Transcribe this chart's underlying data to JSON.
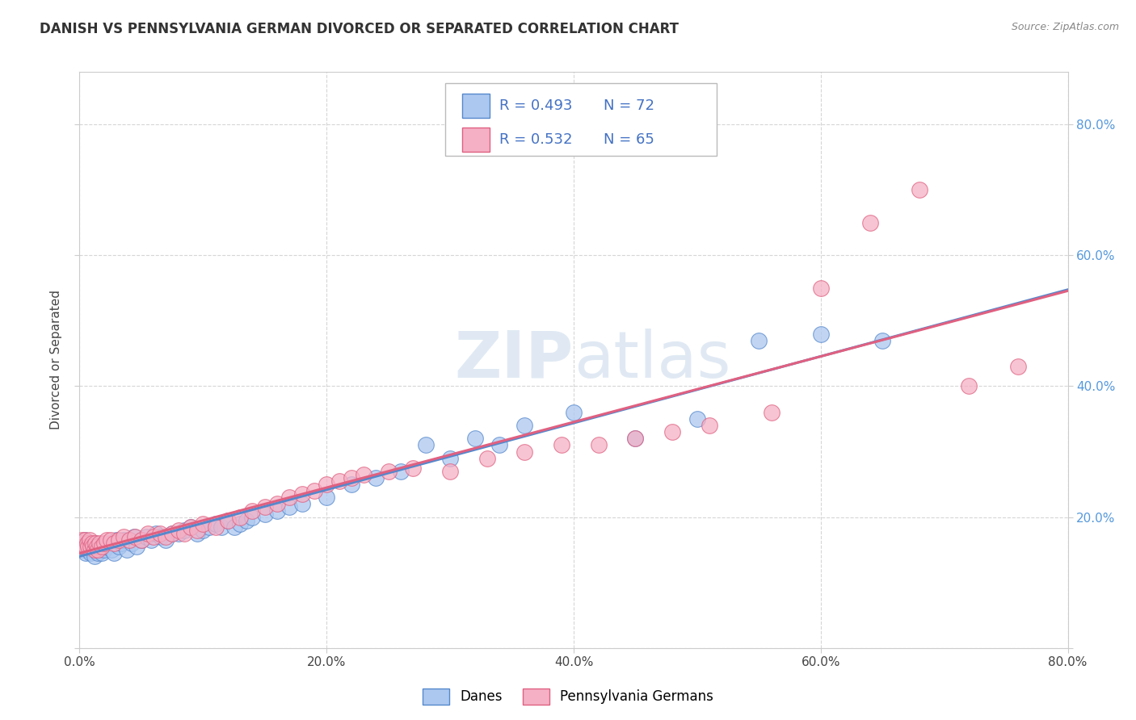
{
  "title": "DANISH VS PENNSYLVANIA GERMAN DIVORCED OR SEPARATED CORRELATION CHART",
  "source": "Source: ZipAtlas.com",
  "ylabel": "Divorced or Separated",
  "xmin": 0.0,
  "xmax": 0.8,
  "ymin": 0.0,
  "ymax": 0.88,
  "yticks": [
    0.0,
    0.2,
    0.4,
    0.6,
    0.8
  ],
  "ytick_labels_right": [
    "",
    "20.0%",
    "40.0%",
    "60.0%",
    "80.0%"
  ],
  "xticks": [
    0.0,
    0.2,
    0.4,
    0.6,
    0.8
  ],
  "xtick_labels": [
    "0.0%",
    "20.0%",
    "40.0%",
    "60.0%",
    "80.0%"
  ],
  "color_danish": "#adc8f0",
  "color_pagerman": "#f5b0c5",
  "color_line_danish": "#5588cc",
  "color_line_pagerman": "#e06080",
  "watermark_text": "ZIPAtlas",
  "legend_label1": "Danes",
  "legend_label2": "Pennsylvania Germans",
  "danes_x": [
    0.001,
    0.002,
    0.003,
    0.004,
    0.005,
    0.006,
    0.007,
    0.008,
    0.009,
    0.01,
    0.011,
    0.012,
    0.013,
    0.014,
    0.015,
    0.016,
    0.017,
    0.018,
    0.019,
    0.02,
    0.022,
    0.024,
    0.026,
    0.028,
    0.03,
    0.032,
    0.034,
    0.036,
    0.038,
    0.04,
    0.042,
    0.044,
    0.046,
    0.05,
    0.054,
    0.058,
    0.062,
    0.066,
    0.07,
    0.075,
    0.08,
    0.085,
    0.09,
    0.095,
    0.1,
    0.105,
    0.11,
    0.115,
    0.12,
    0.125,
    0.13,
    0.135,
    0.14,
    0.15,
    0.16,
    0.17,
    0.18,
    0.2,
    0.22,
    0.24,
    0.26,
    0.28,
    0.3,
    0.32,
    0.34,
    0.36,
    0.4,
    0.45,
    0.5,
    0.55,
    0.6,
    0.65
  ],
  "danes_y": [
    0.155,
    0.16,
    0.15,
    0.165,
    0.145,
    0.155,
    0.15,
    0.16,
    0.145,
    0.155,
    0.15,
    0.14,
    0.16,
    0.155,
    0.145,
    0.155,
    0.15,
    0.145,
    0.155,
    0.15,
    0.155,
    0.16,
    0.15,
    0.145,
    0.165,
    0.155,
    0.16,
    0.165,
    0.15,
    0.165,
    0.16,
    0.17,
    0.155,
    0.165,
    0.17,
    0.165,
    0.175,
    0.17,
    0.165,
    0.175,
    0.175,
    0.18,
    0.185,
    0.175,
    0.18,
    0.185,
    0.19,
    0.185,
    0.195,
    0.185,
    0.19,
    0.195,
    0.2,
    0.205,
    0.21,
    0.215,
    0.22,
    0.23,
    0.25,
    0.26,
    0.27,
    0.31,
    0.29,
    0.32,
    0.31,
    0.34,
    0.36,
    0.32,
    0.35,
    0.47,
    0.48,
    0.47
  ],
  "pagerman_x": [
    0.001,
    0.002,
    0.003,
    0.004,
    0.005,
    0.006,
    0.007,
    0.008,
    0.009,
    0.01,
    0.011,
    0.012,
    0.013,
    0.014,
    0.015,
    0.016,
    0.018,
    0.02,
    0.022,
    0.025,
    0.028,
    0.032,
    0.036,
    0.04,
    0.045,
    0.05,
    0.055,
    0.06,
    0.065,
    0.07,
    0.075,
    0.08,
    0.085,
    0.09,
    0.095,
    0.1,
    0.11,
    0.12,
    0.13,
    0.14,
    0.15,
    0.16,
    0.17,
    0.18,
    0.19,
    0.2,
    0.21,
    0.22,
    0.23,
    0.25,
    0.27,
    0.3,
    0.33,
    0.36,
    0.39,
    0.42,
    0.45,
    0.48,
    0.51,
    0.56,
    0.6,
    0.64,
    0.68,
    0.72,
    0.76
  ],
  "pagerman_y": [
    0.16,
    0.165,
    0.155,
    0.165,
    0.155,
    0.16,
    0.155,
    0.165,
    0.155,
    0.16,
    0.155,
    0.15,
    0.16,
    0.155,
    0.15,
    0.16,
    0.155,
    0.16,
    0.165,
    0.165,
    0.16,
    0.165,
    0.17,
    0.165,
    0.17,
    0.165,
    0.175,
    0.17,
    0.175,
    0.17,
    0.175,
    0.18,
    0.175,
    0.185,
    0.18,
    0.19,
    0.185,
    0.195,
    0.2,
    0.21,
    0.215,
    0.22,
    0.23,
    0.235,
    0.24,
    0.25,
    0.255,
    0.26,
    0.265,
    0.27,
    0.275,
    0.27,
    0.29,
    0.3,
    0.31,
    0.31,
    0.32,
    0.33,
    0.34,
    0.36,
    0.55,
    0.65,
    0.7,
    0.4,
    0.43
  ]
}
